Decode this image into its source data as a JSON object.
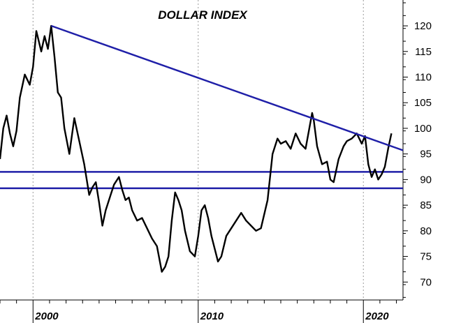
{
  "chart_data": {
    "type": "line",
    "title": "DOLLAR INDEX",
    "xlabel": "",
    "ylabel": "",
    "xlim": [
      1998.0,
      2022.4
    ],
    "ylim": [
      66.5,
      124.5
    ],
    "y_ticks": [
      70,
      75,
      80,
      85,
      90,
      95,
      100,
      105,
      110,
      115,
      120
    ],
    "x_tick_labels": [
      {
        "year": 2000,
        "label": "2000"
      },
      {
        "year": 2010,
        "label": "2010"
      },
      {
        "year": 2020,
        "label": "2020"
      }
    ],
    "grid": {
      "vertical": true,
      "horizontal": false
    },
    "y_axis_position": "right",
    "colors": {
      "series": "#000000",
      "lines": "#1f1fa8",
      "grid": "#9a9a9a"
    },
    "series": [
      {
        "x": [
          1998.0,
          1998.2,
          1998.4,
          1998.6,
          1998.8,
          1999.0,
          1999.2,
          1999.5,
          1999.8,
          2000.0,
          2000.2,
          2000.5,
          2000.7,
          2000.9,
          2001.1,
          2001.3,
          2001.5,
          2001.7,
          2001.9,
          2002.2,
          2002.5,
          2002.8,
          2003.1,
          2003.4,
          2003.6,
          2003.8,
          2004.0,
          2004.2,
          2004.4,
          2004.7,
          2004.9,
          2005.2,
          2005.4,
          2005.6,
          2005.8,
          2006.0,
          2006.3,
          2006.6,
          2006.9,
          2007.2,
          2007.5,
          2007.8,
          2008.0,
          2008.2,
          2008.4,
          2008.6,
          2008.8,
          2009.0,
          2009.2,
          2009.5,
          2009.8,
          2010.0,
          2010.2,
          2010.4,
          2010.6,
          2010.8,
          2011.0,
          2011.2,
          2011.4,
          2011.7,
          2012.0,
          2012.3,
          2012.6,
          2012.9,
          2013.2,
          2013.5,
          2013.8,
          2014.2,
          2014.5,
          2014.8,
          2015.0,
          2015.3,
          2015.6,
          2015.9,
          2016.2,
          2016.5,
          2016.9,
          2017.0,
          2017.2,
          2017.5,
          2017.8,
          2018.0,
          2018.2,
          2018.5,
          2018.8,
          2019.0,
          2019.3,
          2019.6,
          2019.9,
          2020.1,
          2020.3,
          2020.5,
          2020.7,
          2020.9,
          2021.1,
          2021.3,
          2021.5,
          2021.7
        ],
        "values": [
          94.0,
          100.0,
          102.5,
          99.0,
          96.5,
          99.5,
          106.0,
          110.5,
          108.5,
          112.0,
          119.0,
          115.0,
          118.0,
          115.5,
          120.0,
          114.0,
          107.0,
          106.0,
          100.0,
          95.0,
          102.0,
          97.5,
          93.0,
          87.0,
          88.5,
          89.5,
          85.5,
          81.0,
          84.0,
          87.0,
          89.0,
          90.5,
          88.0,
          86.0,
          86.5,
          84.0,
          82.0,
          82.5,
          80.5,
          78.5,
          77.0,
          72.0,
          73.0,
          75.0,
          82.0,
          87.5,
          86.0,
          84.0,
          80.0,
          76.0,
          75.0,
          79.0,
          84.0,
          85.0,
          82.5,
          79.0,
          76.5,
          74.0,
          75.0,
          79.0,
          80.5,
          82.0,
          83.5,
          82.0,
          81.0,
          80.0,
          80.5,
          86.0,
          95.0,
          98.0,
          97.0,
          97.5,
          96.0,
          99.0,
          97.0,
          96.0,
          103.0,
          101.5,
          96.5,
          93.0,
          93.5,
          90.0,
          89.5,
          94.0,
          96.5,
          97.5,
          98.0,
          99.0,
          97.0,
          98.5,
          93.0,
          90.5,
          92.0,
          90.0,
          91.0,
          92.5,
          96.0,
          99.0
        ]
      }
    ],
    "horizontal_lines": [
      91.5,
      88.3
    ],
    "trendline": {
      "x": [
        2001.1,
        2022.4
      ],
      "y": [
        120.0,
        95.7
      ]
    }
  }
}
